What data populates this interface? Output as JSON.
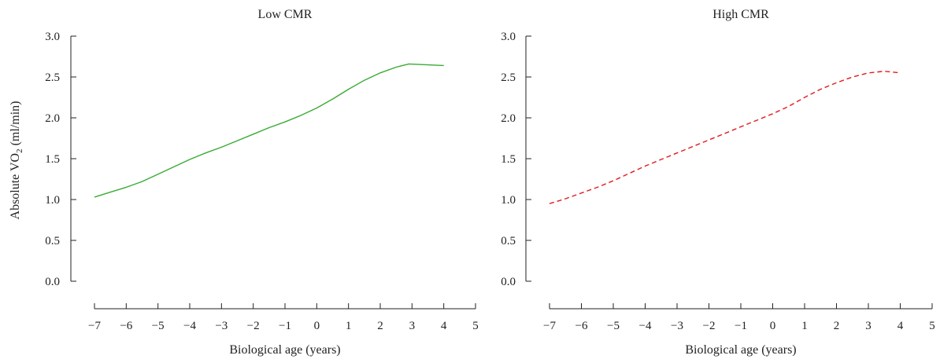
{
  "chart_data": [
    {
      "type": "line",
      "title": "Low CMR",
      "xlabel": "Biological age (years)",
      "ylabel": "Absolute VO₂ (ml/min)",
      "xlim": [
        -7,
        5
      ],
      "ylim": [
        0.0,
        3.0
      ],
      "x_ticks": [
        "−7",
        "−6",
        "−5",
        "−4",
        "−3",
        "−2",
        "−1",
        "0",
        "1",
        "2",
        "3",
        "4",
        "5"
      ],
      "y_ticks": [
        "0.0",
        "0.5",
        "1.0",
        "1.5",
        "2.0",
        "2.5",
        "3.0"
      ],
      "series": [
        {
          "color": "#3aaa35",
          "style": "solid",
          "x": [
            -7.0,
            -6.5,
            -6.0,
            -5.5,
            -5.0,
            -4.5,
            -4.0,
            -3.5,
            -3.0,
            -2.5,
            -2.0,
            -1.5,
            -1.0,
            -0.5,
            0.0,
            0.5,
            1.0,
            1.5,
            2.0,
            2.5,
            2.9,
            4.0
          ],
          "y": [
            1.03,
            1.09,
            1.15,
            1.22,
            1.31,
            1.4,
            1.49,
            1.57,
            1.64,
            1.72,
            1.8,
            1.88,
            1.95,
            2.03,
            2.12,
            2.23,
            2.35,
            2.46,
            2.55,
            2.62,
            2.66,
            2.64
          ]
        }
      ]
    },
    {
      "type": "line",
      "title": "High CMR",
      "xlabel": "Biological age (years)",
      "xlim": [
        -7,
        5
      ],
      "ylim": [
        0.0,
        3.0
      ],
      "x_ticks": [
        "−7",
        "−6",
        "−5",
        "−4",
        "−3",
        "−2",
        "−1",
        "0",
        "1",
        "2",
        "3",
        "4",
        "5"
      ],
      "y_ticks": [
        "0.0",
        "0.5",
        "1.0",
        "1.5",
        "2.0",
        "2.5",
        "3.0"
      ],
      "series": [
        {
          "color": "#e31a1c",
          "style": "dashed",
          "x": [
            -7.0,
            -6.5,
            -6.0,
            -5.5,
            -5.0,
            -4.5,
            -4.0,
            -3.5,
            -3.0,
            -2.5,
            -2.0,
            -1.5,
            -1.0,
            -0.5,
            0.0,
            0.5,
            1.0,
            1.5,
            2.0,
            2.5,
            3.0,
            3.5,
            4.0
          ],
          "y": [
            0.95,
            1.01,
            1.08,
            1.15,
            1.23,
            1.32,
            1.41,
            1.49,
            1.57,
            1.65,
            1.73,
            1.81,
            1.89,
            1.97,
            2.05,
            2.14,
            2.25,
            2.35,
            2.43,
            2.5,
            2.55,
            2.57,
            2.55
          ]
        }
      ]
    }
  ]
}
